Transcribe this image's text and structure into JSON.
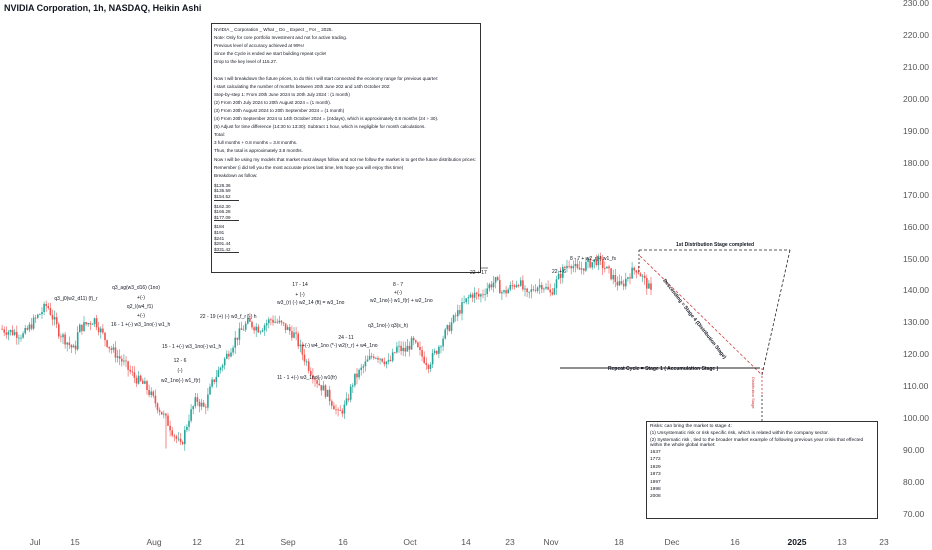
{
  "chart_data": {
    "type": "candlestick",
    "title": "NVIDIA Corporation, 1h, NASDAQ, Heikin Ashi",
    "ylim": [
      70,
      230
    ],
    "yticks": [
      "230.00",
      "220.00",
      "210.00",
      "200.00",
      "190.00",
      "180.00",
      "170.00",
      "160.00",
      "150.00",
      "140.00",
      "130.00",
      "120.00",
      "110.00",
      "100.00",
      "90.00",
      "80.00",
      "70.00"
    ],
    "xticks": [
      {
        "label": "Jul",
        "bold": false
      },
      {
        "label": "15",
        "bold": false
      },
      {
        "label": "Aug",
        "bold": false
      },
      {
        "label": "12",
        "bold": false
      },
      {
        "label": "21",
        "bold": false
      },
      {
        "label": "Sep",
        "bold": false
      },
      {
        "label": "16",
        "bold": false
      },
      {
        "label": "Oct",
        "bold": false
      },
      {
        "label": "14",
        "bold": false
      },
      {
        "label": "23",
        "bold": false
      },
      {
        "label": "Nov",
        "bold": false
      },
      {
        "label": "18",
        "bold": false
      },
      {
        "label": "Dec",
        "bold": false
      },
      {
        "label": "16",
        "bold": false
      },
      {
        "label": "2025",
        "bold": true
      },
      {
        "label": "13",
        "bold": false
      },
      {
        "label": "23",
        "bold": false
      }
    ],
    "up_color": "#26a69a",
    "down_color": "#ef5350",
    "price_path": [
      [
        0,
        128
      ],
      [
        0.06,
        126
      ],
      [
        0.09,
        131
      ],
      [
        0.12,
        135.5
      ],
      [
        0.15,
        127
      ],
      [
        0.19,
        121
      ],
      [
        0.2,
        128
      ],
      [
        0.24,
        131
      ],
      [
        0.28,
        122
      ],
      [
        0.31,
        118
      ],
      [
        0.34,
        113
      ],
      [
        0.37,
        110
      ],
      [
        0.4,
        104
      ],
      [
        0.43,
        98
      ],
      [
        0.46,
        91
      ],
      [
        0.48,
        100
      ],
      [
        0.5,
        106
      ],
      [
        0.52,
        103
      ],
      [
        0.54,
        111
      ],
      [
        0.57,
        118
      ],
      [
        0.6,
        125
      ],
      [
        0.63,
        130
      ],
      [
        0.66,
        128
      ],
      [
        0.69,
        131
      ],
      [
        0.72,
        129
      ],
      [
        0.75,
        126
      ],
      [
        0.77,
        120
      ],
      [
        0.79,
        115
      ],
      [
        0.81,
        111
      ],
      [
        0.83,
        108
      ],
      [
        0.85,
        104
      ],
      [
        0.86,
        101
      ],
      [
        0.88,
        104
      ],
      [
        0.9,
        112
      ],
      [
        0.93,
        117
      ],
      [
        0.95,
        120
      ],
      [
        0.97,
        119
      ],
      [
        0.99,
        117
      ],
      [
        1.01,
        122
      ],
      [
        1.03,
        121
      ],
      [
        1.05,
        124
      ],
      [
        1.07,
        120
      ],
      [
        1.09,
        117
      ],
      [
        1.11,
        121
      ],
      [
        1.13,
        126
      ],
      [
        1.15,
        130
      ],
      [
        1.17,
        134
      ],
      [
        1.2,
        139
      ],
      [
        1.22,
        138
      ],
      [
        1.24,
        141
      ],
      [
        1.26,
        143
      ],
      [
        1.28,
        139
      ],
      [
        1.3,
        141
      ],
      [
        1.32,
        143
      ],
      [
        1.34,
        138
      ],
      [
        1.36,
        141
      ],
      [
        1.38,
        142
      ],
      [
        1.4,
        139
      ],
      [
        1.43,
        146
      ],
      [
        1.45,
        149
      ],
      [
        1.47,
        146
      ],
      [
        1.49,
        148
      ],
      [
        1.52,
        149.5
      ],
      [
        1.54,
        147
      ],
      [
        1.56,
        144
      ],
      [
        1.58,
        141
      ],
      [
        1.6,
        145
      ],
      [
        1.62,
        147
      ],
      [
        1.64,
        143
      ],
      [
        1.65,
        141
      ],
      [
        1.66,
        138
      ]
    ],
    "annotations": [
      {
        "text": "q3_j0(w2_d11) (f)_r"
      },
      {
        "text": "q3_ag(w3_d16) (1no)"
      },
      {
        "text": "+(-)"
      },
      {
        "text": "q2_l(w4_f1)"
      },
      {
        "text": "+(-)"
      },
      {
        "text": "16 - 1 +(-) w3_1no(-) w1_h"
      },
      {
        "text": "22 - 19 (+) (-) w3_f_r (-) h"
      },
      {
        "text": "15 - 1 +(-) w3_1no(-) w1_h"
      },
      {
        "text": "12 - 6"
      },
      {
        "text": "(-)"
      },
      {
        "text": "w2_1no(-) w1_f(r)"
      },
      {
        "text": "17 - 14"
      },
      {
        "text": "+ (-)"
      },
      {
        "text": "w3_(r) (-) w2_14 (ft) = w3_1no"
      },
      {
        "text": "24 - 11"
      },
      {
        "text": "+(-) w4_1no (*-) w2(r_r) + w4_1no"
      },
      {
        "text": "11 - 1 +(-) w3_1no(-) w1(fr)"
      },
      {
        "text": "8 - 7"
      },
      {
        "text": "+(-)"
      },
      {
        "text": "w2_1no(-) w1_f(r) + w2_1no"
      },
      {
        "text": "q3_1no(-) q3(s_h)"
      },
      {
        "text": "22 + 17"
      },
      {
        "text": "22 + 6"
      },
      {
        "text": "8 - 7 + w2_r(-) w1_fs"
      }
    ],
    "stage_labels": {
      "distribution": "1st Distribution  Stage completed",
      "descending": "Descending = Stage 4 (Distribution Stage)",
      "repeat": "Repeat Cycle = Stage 1 ( Accumulation Stage )",
      "small": "Distribution Stage"
    }
  },
  "note": {
    "lines": [
      {
        "t": "NVIDIA _ Corporation _ What _ Do _ Expect _ For _ 2025."
      },
      {
        "t": "Note: Only for core portfolio Investment and not for active trading."
      },
      {
        "t": "Previous level of accuracy achieved at 99%!"
      },
      {
        "t": "Since the Cycle is ended we start building repeat cycle!"
      },
      {
        "t": "Drop to the key level of 115.27."
      },
      {
        "t": ""
      },
      {
        "t": "Now I will breakdown the future prices, to do this I will start connected the economy range for previous quarter:"
      },
      {
        "t": "I start calculating the number of months between 20th June 202 and 14th October 202:"
      },
      {
        "t": "Step-by-step 1: From 20th June 2024 to 20th July 2024 : (1 month)"
      },
      {
        "t": "(2) From 20th July 2024 to 20th August 2024 = (1 month)."
      },
      {
        "t": "(3) From 20th August 2024 to 20th September 2024 = (1 month)"
      },
      {
        "t": "(4) From 20th September 2024 to 14th October 2024 = (24days),  which is approximately 0.8 months (24 ÷ 30)."
      },
      {
        "t": "(5) Adjust for time difference (14:30 to 13:30): Subtract 1 hour, which is negligible for month calculations."
      },
      {
        "t": "Total:"
      },
      {
        "t": "3 full months + 0.8 months = 3.8 months."
      },
      {
        "t": "Thus, the total is approximately 3.8 months."
      },
      {
        "t": "Now I will be using my models that market must always follow and not me follow the market is to get the future distribution prices:"
      },
      {
        "t": "Remember (i did tell you the most accurate prices last time, lets hope you will enjoy this time)"
      },
      {
        "t": "Breakdown as follow:"
      }
    ],
    "groups": [
      [
        "$128.36",
        "$135.59",
        "$154.52"
      ],
      [
        "$162.30",
        "$166.28",
        "$177.09"
      ],
      [
        "$184",
        "$191",
        "$241",
        "$291.44",
        "$331.42"
      ]
    ]
  },
  "risk": {
    "lines": [
      "Risks:  can bring the market to stage 4:",
      "(1) Unsystematic risk or risk specific risk, which is related within the  company sector.",
      "(2) Systematic risk , tied to the broader market example of following previous year crisis that effected within the whole global market:",
      "1637",
      "1772",
      "1929",
      "1973",
      "1997",
      "1998",
      "2008"
    ]
  }
}
